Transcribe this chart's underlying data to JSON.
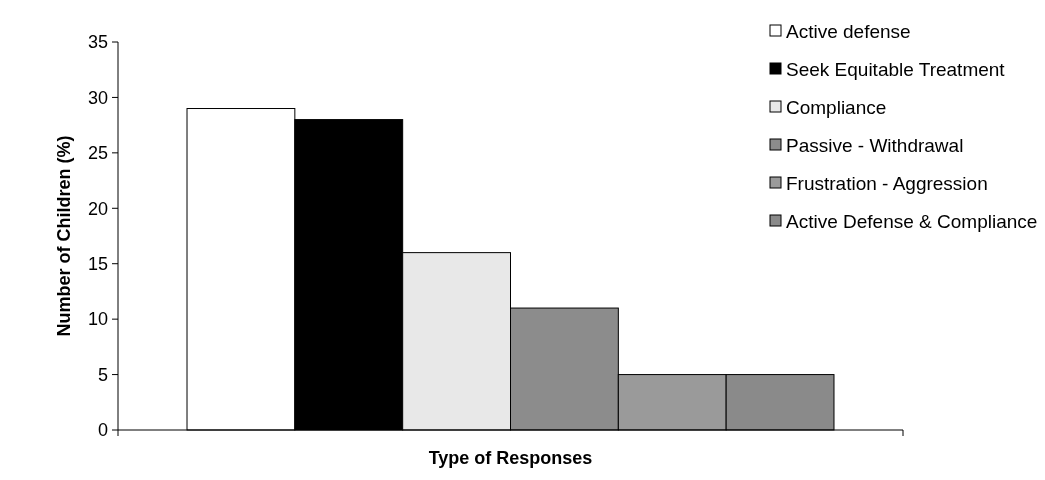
{
  "chart_data": {
    "type": "bar",
    "xlabel": "Type of Responses",
    "ylabel": "Number of Children (%)",
    "categories": [
      null
    ],
    "series": [
      {
        "name": "Active defense",
        "color": "#ffffff",
        "values": [
          29
        ]
      },
      {
        "name": "Seek Equitable Treatment",
        "color": "#000000",
        "values": [
          28
        ]
      },
      {
        "name": "Compliance",
        "color": "#e8e8e8",
        "values": [
          16
        ]
      },
      {
        "name": "Passive - Withdrawal",
        "color": "#8c8c8c",
        "values": [
          11
        ]
      },
      {
        "name": "Frustration - Aggression",
        "color": "#9a9a9a",
        "values": [
          5
        ]
      },
      {
        "name": "Active Defense & Compliance",
        "color": "#8a8a8a",
        "values": [
          5
        ]
      }
    ],
    "ylim": [
      0,
      35
    ],
    "yticks": [
      0,
      5,
      10,
      15,
      20,
      25,
      30,
      35
    ],
    "grid": false,
    "legend": "top right"
  }
}
